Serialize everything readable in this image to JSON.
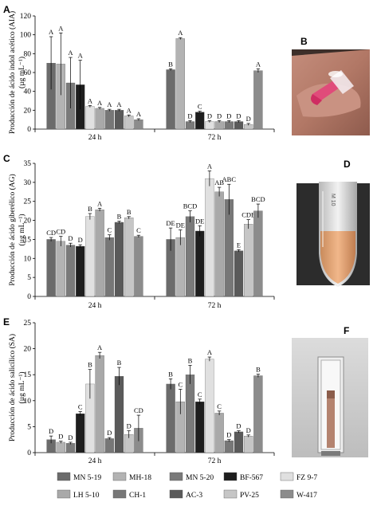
{
  "panel_letters": {
    "a": "A",
    "b": "B",
    "c": "C",
    "d": "D",
    "e": "E",
    "f": "F"
  },
  "series_colors": [
    "#6b6b6b",
    "#b3b3b3",
    "#7a7a7a",
    "#1e1e1e",
    "#e0e0e0",
    "#a9a9a9",
    "#777777",
    "#5a5a5a",
    "#c6c6c6",
    "#8c8c8c"
  ],
  "legend": [
    "MN 5-19",
    "MH-18",
    "MN 5-20",
    "BF-567",
    "FZ 9-7",
    "LH 5-10",
    "CH-1",
    "AC-3",
    "PV-25",
    "W-417"
  ],
  "chart_data": [
    {
      "type": "bar",
      "panel": "A",
      "ylabel": "Producción de ácido indol acético (AIA)",
      "unit": "(µg mL⁻¹)",
      "ylim": [
        0,
        120
      ],
      "yticks": [
        0,
        20,
        40,
        60,
        80,
        100,
        120
      ],
      "categories": [
        "24 h",
        "72 h"
      ],
      "series": [
        {
          "name": "MN 5-19",
          "values": [
            70,
            63
          ],
          "errors": [
            28,
            1
          ],
          "letters": [
            "A",
            "B"
          ]
        },
        {
          "name": "MH-18",
          "values": [
            69,
            96
          ],
          "errors": [
            33,
            1
          ],
          "letters": [
            "A",
            "A"
          ]
        },
        {
          "name": "MN 5-20",
          "values": [
            49,
            8
          ],
          "errors": [
            27,
            1
          ],
          "letters": [
            "A",
            "D"
          ]
        },
        {
          "name": "BF-567",
          "values": [
            47,
            18
          ],
          "errors": [
            26,
            1
          ],
          "letters": [
            "A",
            "C"
          ]
        },
        {
          "name": "FZ 9-7",
          "values": [
            24,
            8
          ],
          "errors": [
            1,
            1
          ],
          "letters": [
            "A",
            "D"
          ]
        },
        {
          "name": "LH 5-10",
          "values": [
            22,
            8
          ],
          "errors": [
            1,
            1
          ],
          "letters": [
            "A",
            "D"
          ]
        },
        {
          "name": "CH-1",
          "values": [
            20,
            8
          ],
          "errors": [
            1,
            1
          ],
          "letters": [
            "A",
            "D"
          ]
        },
        {
          "name": "AC-3",
          "values": [
            20,
            8
          ],
          "errors": [
            1,
            1
          ],
          "letters": [
            "A",
            "D"
          ]
        },
        {
          "name": "PV-25",
          "values": [
            14,
            5
          ],
          "errors": [
            1,
            1
          ],
          "letters": [
            "A",
            "D"
          ]
        },
        {
          "name": "W-417",
          "values": [
            10,
            62
          ],
          "errors": [
            1,
            2
          ],
          "letters": [
            "A",
            "A"
          ]
        }
      ]
    },
    {
      "type": "bar",
      "panel": "C",
      "ylabel": "Producción de ácido giberélico (AG)",
      "unit": "(µg mL⁻¹)",
      "ylim": [
        0,
        35
      ],
      "yticks": [
        0,
        5,
        10,
        15,
        20,
        25,
        30,
        35
      ],
      "categories": [
        "24 h",
        "72 h"
      ],
      "series": [
        {
          "name": "MN 5-19",
          "values": [
            15,
            15
          ],
          "errors": [
            0.5,
            3
          ],
          "letters": [
            "CD",
            "DE"
          ]
        },
        {
          "name": "MH-18",
          "values": [
            14.5,
            15.5
          ],
          "errors": [
            1.3,
            2
          ],
          "letters": [
            "CD",
            "DE"
          ]
        },
        {
          "name": "MN 5-20",
          "values": [
            13.5,
            21
          ],
          "errors": [
            0.5,
            1.5
          ],
          "letters": [
            "D",
            "BCD"
          ]
        },
        {
          "name": "BF-567",
          "values": [
            13.2,
            17.2
          ],
          "errors": [
            0.4,
            1.4
          ],
          "letters": [
            "D",
            "DE"
          ]
        },
        {
          "name": "FZ 9-7",
          "values": [
            21,
            31
          ],
          "errors": [
            0.8,
            2
          ],
          "letters": [
            "B",
            "A"
          ]
        },
        {
          "name": "LH 5-10",
          "values": [
            22.8,
            27.5
          ],
          "errors": [
            0.4,
            1.2
          ],
          "letters": [
            "A",
            "AB"
          ]
        },
        {
          "name": "CH-1",
          "values": [
            15.5,
            25.5
          ],
          "errors": [
            0.7,
            4
          ],
          "letters": [
            "C",
            "ABC"
          ]
        },
        {
          "name": "AC-3",
          "values": [
            19.5,
            12
          ],
          "errors": [
            0.3,
            0.3
          ],
          "letters": [
            "B",
            "E"
          ]
        },
        {
          "name": "PV-25",
          "values": [
            20.7,
            19
          ],
          "errors": [
            0.3,
            1.2
          ],
          "letters": [
            "B",
            "CDE"
          ]
        },
        {
          "name": "W-417",
          "values": [
            15.8,
            22.5
          ],
          "errors": [
            0.3,
            1.8
          ],
          "letters": [
            "C",
            "BCD"
          ]
        }
      ]
    },
    {
      "type": "bar",
      "panel": "E",
      "ylabel": "Producción de ácido salicílico (SA)",
      "unit": "(µg mL⁻¹)",
      "ylim": [
        0,
        25
      ],
      "yticks": [
        0,
        5,
        10,
        15,
        20,
        25
      ],
      "categories": [
        "24 h",
        "72 h"
      ],
      "series": [
        {
          "name": "MN 5-19",
          "values": [
            2.5,
            13.2
          ],
          "errors": [
            0.7,
            1
          ],
          "letters": [
            "D",
            "B"
          ]
        },
        {
          "name": "MH-18",
          "values": [
            2.0,
            9.8
          ],
          "errors": [
            0.2,
            2.4
          ],
          "letters": [
            "D",
            "C"
          ]
        },
        {
          "name": "MN 5-20",
          "values": [
            1.8,
            15.0
          ],
          "errors": [
            0.2,
            1.8
          ],
          "letters": [
            "D",
            "B"
          ]
        },
        {
          "name": "BF-567",
          "values": [
            7.5,
            9.8
          ],
          "errors": [
            0.4,
            0.5
          ],
          "letters": [
            "C",
            "C"
          ]
        },
        {
          "name": "FZ 9-7",
          "values": [
            13.2,
            18.0
          ],
          "errors": [
            2.8,
            0.4
          ],
          "letters": [
            "B",
            "A"
          ]
        },
        {
          "name": "LH 5-10",
          "values": [
            18.7,
            7.6
          ],
          "errors": [
            0.6,
            0.4
          ],
          "letters": [
            "A",
            "C"
          ]
        },
        {
          "name": "CH-1",
          "values": [
            2.7,
            2.3
          ],
          "errors": [
            0.2,
            0.2
          ],
          "letters": [
            "D",
            "D"
          ]
        },
        {
          "name": "AC-3",
          "values": [
            14.7,
            4.0
          ],
          "errors": [
            1.7,
            0.2
          ],
          "letters": [
            "B",
            "D"
          ]
        },
        {
          "name": "PV-25",
          "values": [
            3.5,
            3.2
          ],
          "errors": [
            0.7,
            0.2
          ],
          "letters": [
            "D",
            "D"
          ]
        },
        {
          "name": "W-417",
          "values": [
            4.7,
            14.8
          ],
          "errors": [
            2.5,
            0.3
          ],
          "letters": [
            "CD",
            "B"
          ]
        }
      ]
    }
  ]
}
